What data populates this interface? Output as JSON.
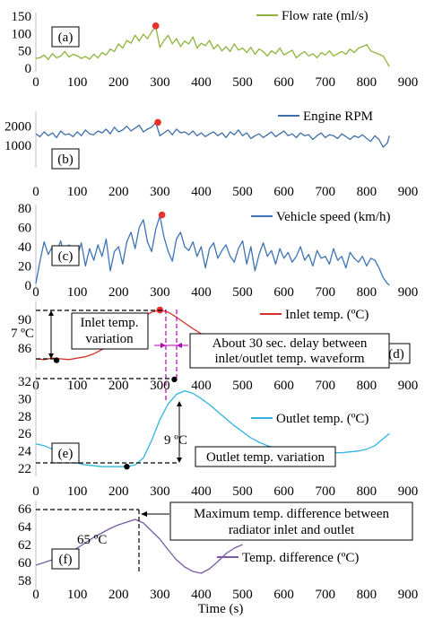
{
  "xlabel": "Time (s)",
  "colors": {
    "flow": "#8db43a",
    "rpm": "#3e6ea8",
    "speed": "#3e74b4",
    "inlet": "#d4302a",
    "outlet": "#2fb5df",
    "diff": "#7b5aa6",
    "marker_red": "#e8312a",
    "marker_black": "#000000",
    "delay_arrow": "#b000b0"
  },
  "chart_data": [
    {
      "id": "a",
      "panel_label": "(a)",
      "type": "line",
      "legend": "Flow rate (ml/s)",
      "ylim": [
        0,
        150
      ],
      "yticks": [
        "0",
        "50",
        "100",
        "150"
      ],
      "ytick_values": [
        0,
        50,
        100,
        150
      ],
      "xlim": [
        0,
        900
      ],
      "xticks": [
        "0",
        "100",
        "200",
        "300",
        "400",
        "500",
        "600",
        "700",
        "800",
        "900"
      ],
      "x": [
        0,
        10,
        20,
        30,
        40,
        50,
        60,
        70,
        80,
        90,
        100,
        110,
        120,
        130,
        140,
        150,
        160,
        170,
        180,
        190,
        200,
        210,
        220,
        230,
        240,
        250,
        260,
        270,
        280,
        290,
        300,
        310,
        320,
        330,
        340,
        350,
        360,
        370,
        380,
        390,
        400,
        410,
        420,
        430,
        440,
        450,
        460,
        470,
        480,
        490,
        500,
        510,
        520,
        530,
        540,
        550,
        560,
        570,
        580,
        590,
        600,
        610,
        620,
        630,
        640,
        650,
        660,
        670,
        680,
        690,
        700,
        710,
        720,
        730,
        740,
        750,
        760,
        770,
        780,
        790,
        800,
        810,
        820,
        830,
        840,
        850,
        855
      ],
      "y": [
        28,
        30,
        38,
        25,
        42,
        30,
        35,
        48,
        32,
        40,
        36,
        28,
        34,
        26,
        40,
        30,
        45,
        38,
        55,
        48,
        70,
        58,
        80,
        72,
        95,
        78,
        98,
        85,
        105,
        120,
        60,
        80,
        95,
        70,
        85,
        62,
        78,
        70,
        90,
        58,
        72,
        65,
        80,
        55,
        68,
        50,
        62,
        48,
        70,
        52,
        58,
        45,
        60,
        40,
        55,
        48,
        35,
        50,
        42,
        58,
        38,
        45,
        52,
        30,
        40,
        48,
        35,
        42,
        30,
        45,
        38,
        50,
        35,
        42,
        48,
        40,
        55,
        45,
        58,
        62,
        68,
        50,
        45,
        40,
        35,
        15,
        5
      ],
      "markers": [
        {
          "x": 290,
          "y": 122,
          "color": "red"
        }
      ]
    },
    {
      "id": "b",
      "panel_label": "(b)",
      "type": "line",
      "legend": "Engine RPM",
      "ylim": [
        0,
        2600
      ],
      "yticks": [
        "1000",
        "2000"
      ],
      "ytick_values": [
        1000,
        2000
      ],
      "xlim": [
        0,
        900
      ],
      "xticks": [
        "0",
        "100",
        "200",
        "300",
        "400",
        "500",
        "600",
        "700",
        "800",
        "900"
      ],
      "x": [
        0,
        10,
        20,
        30,
        40,
        50,
        60,
        70,
        80,
        90,
        100,
        110,
        120,
        130,
        140,
        150,
        160,
        170,
        180,
        190,
        200,
        210,
        220,
        230,
        240,
        250,
        260,
        270,
        280,
        290,
        300,
        310,
        320,
        330,
        340,
        350,
        360,
        370,
        380,
        390,
        400,
        410,
        420,
        430,
        440,
        450,
        460,
        470,
        480,
        490,
        500,
        510,
        520,
        530,
        540,
        550,
        560,
        570,
        580,
        590,
        600,
        610,
        620,
        630,
        640,
        650,
        660,
        670,
        680,
        690,
        700,
        710,
        720,
        730,
        740,
        750,
        760,
        770,
        780,
        790,
        800,
        810,
        820,
        830,
        840,
        850,
        855
      ],
      "y": [
        1600,
        1450,
        1700,
        1500,
        1650,
        1400,
        1750,
        1550,
        1600,
        1450,
        1700,
        1500,
        1800,
        1600,
        1550,
        1750,
        1650,
        1850,
        1600,
        1950,
        1700,
        1800,
        2000,
        1750,
        1900,
        2050,
        1700,
        1850,
        1950,
        2200,
        1500,
        1650,
        1800,
        1550,
        1850,
        1650,
        1700,
        1550,
        1750,
        1500,
        1650,
        1450,
        1600,
        1700,
        1500,
        1650,
        1400,
        1700,
        1550,
        1800,
        1500,
        1650,
        1350,
        1500,
        1600,
        1400,
        1550,
        1700,
        1450,
        1600,
        1750,
        1500,
        1600,
        1400,
        1650,
        1500,
        1550,
        1300,
        1500,
        1650,
        1400,
        1550,
        1500,
        1350,
        1600,
        1450,
        1300,
        1500,
        1400,
        1550,
        1350,
        1200,
        1500,
        1300,
        900,
        1100,
        1500
      ],
      "markers": [
        {
          "x": 295,
          "y": 2200,
          "color": "red"
        }
      ]
    },
    {
      "id": "c",
      "panel_label": "(c)",
      "type": "line",
      "legend": "Vehicle speed (km/h)",
      "ylim": [
        0,
        80
      ],
      "yticks": [
        "0",
        "20",
        "40",
        "60",
        "80"
      ],
      "ytick_values": [
        0,
        20,
        40,
        60,
        80
      ],
      "xlim": [
        0,
        900
      ],
      "xticks": [
        "0",
        "100",
        "200",
        "300",
        "400",
        "500",
        "600",
        "700",
        "800",
        "900"
      ],
      "x": [
        0,
        10,
        20,
        30,
        40,
        50,
        60,
        70,
        80,
        90,
        100,
        110,
        120,
        130,
        140,
        150,
        160,
        170,
        180,
        190,
        200,
        210,
        220,
        230,
        240,
        250,
        260,
        270,
        280,
        290,
        300,
        310,
        320,
        330,
        340,
        350,
        360,
        370,
        380,
        390,
        400,
        410,
        420,
        430,
        440,
        450,
        460,
        470,
        480,
        490,
        500,
        510,
        520,
        530,
        540,
        550,
        560,
        570,
        580,
        590,
        600,
        610,
        620,
        630,
        640,
        650,
        660,
        670,
        680,
        690,
        700,
        710,
        720,
        730,
        740,
        750,
        760,
        770,
        780,
        790,
        800,
        810,
        820,
        830,
        840,
        850,
        855
      ],
      "y": [
        2,
        25,
        45,
        32,
        40,
        35,
        46,
        28,
        42,
        36,
        30,
        44,
        20,
        38,
        26,
        42,
        30,
        48,
        15,
        35,
        40,
        22,
        45,
        55,
        38,
        60,
        68,
        45,
        35,
        58,
        72,
        50,
        35,
        25,
        48,
        55,
        40,
        36,
        45,
        30,
        40,
        18,
        38,
        44,
        28,
        36,
        42,
        30,
        24,
        38,
        46,
        22,
        40,
        15,
        32,
        44,
        30,
        36,
        22,
        38,
        28,
        34,
        24,
        30,
        40,
        26,
        32,
        20,
        36,
        28,
        30,
        22,
        38,
        26,
        30,
        18,
        34,
        28,
        24,
        30,
        20,
        28,
        26,
        18,
        8,
        2,
        0
      ],
      "markers": [
        {
          "x": 305,
          "y": 73,
          "color": "red"
        }
      ]
    },
    {
      "id": "d",
      "panel_label": "(d)",
      "type": "line",
      "legend": "Inlet temp. (ºC)",
      "ylim": [
        83.5,
        92
      ],
      "yticks": [
        "86",
        "90"
      ],
      "ytick_values": [
        86,
        90
      ],
      "xlim": [
        0,
        900
      ],
      "xticks": [
        "0",
        "100",
        "200",
        "300",
        "400",
        "500",
        "600",
        "700",
        "800",
        "900"
      ],
      "x": [
        0,
        20,
        40,
        60,
        80,
        100,
        120,
        140,
        160,
        180,
        200,
        220,
        240,
        260,
        280,
        300,
        320,
        340,
        360,
        380,
        400,
        420,
        440,
        460,
        480,
        500,
        520,
        540,
        560,
        580,
        600,
        620,
        640,
        660,
        680,
        700,
        720,
        740,
        760,
        780,
        800,
        820,
        840,
        855
      ],
      "y": [
        84.5,
        84.4,
        84.6,
        84.5,
        84.4,
        84.6,
        84.8,
        85.2,
        85.8,
        86.6,
        87.6,
        88.6,
        89.6,
        90.4,
        91.0,
        91.3,
        91.0,
        90.3,
        89.5,
        88.7,
        88.0,
        87.6,
        87.3,
        87.2,
        87.3,
        87.4,
        87.4,
        87.5,
        87.6,
        87.5,
        87.4,
        87.4,
        87.5,
        87.4,
        87.3,
        87.4,
        87.5,
        87.6,
        87.5,
        87.6,
        87.5,
        87.6,
        87.6,
        87.7
      ],
      "markers": [
        {
          "x": 300,
          "y": 91.3,
          "color": "red"
        },
        {
          "x": 50,
          "y": 84.3,
          "color": "black"
        }
      ]
    },
    {
      "id": "e",
      "panel_label": "(e)",
      "type": "line",
      "legend": "Outlet temp. (ºC)",
      "ylim": [
        21.5,
        32.5
      ],
      "yticks": [
        "22",
        "24",
        "26",
        "28",
        "30",
        "32"
      ],
      "ytick_values": [
        22,
        24,
        26,
        28,
        30,
        32
      ],
      "xlim": [
        0,
        900
      ],
      "xticks": [
        "0",
        "100",
        "200",
        "300",
        "400",
        "500",
        "600",
        "700",
        "800",
        "900"
      ],
      "x": [
        0,
        20,
        40,
        60,
        80,
        100,
        120,
        140,
        160,
        180,
        200,
        220,
        240,
        260,
        280,
        300,
        320,
        340,
        360,
        380,
        400,
        420,
        440,
        460,
        480,
        500,
        520,
        540,
        560,
        580,
        600,
        620,
        640,
        660,
        680,
        700,
        720,
        740,
        760,
        780,
        800,
        820,
        840,
        855
      ],
      "y": [
        24.8,
        24.6,
        24.2,
        23.6,
        23.0,
        22.6,
        22.4,
        22.3,
        22.2,
        22.2,
        22.2,
        22.2,
        22.4,
        23.2,
        25.2,
        27.6,
        29.4,
        30.5,
        30.9,
        30.6,
        30.0,
        29.3,
        28.5,
        27.7,
        26.9,
        26.2,
        25.5,
        25.0,
        24.6,
        24.3,
        24.1,
        24.0,
        23.9,
        23.8,
        23.8,
        23.7,
        23.8,
        23.8,
        23.9,
        24.0,
        24.2,
        24.6,
        25.4,
        26.0
      ],
      "markers": [
        {
          "x": 335,
          "y": 32.2,
          "color": "black"
        },
        {
          "x": 220,
          "y": 22.2,
          "color": "black"
        }
      ]
    },
    {
      "id": "f",
      "panel_label": "(f)",
      "type": "line",
      "legend": "Temp. difference (ºC)",
      "ylim": [
        57.5,
        66.5
      ],
      "yticks": [
        "58",
        "60",
        "62",
        "64",
        "66"
      ],
      "ytick_values": [
        58,
        60,
        62,
        64,
        66
      ],
      "xlim": [
        0,
        900
      ],
      "xticks": [
        "0",
        "100",
        "200",
        "300",
        "400",
        "500",
        "600",
        "700",
        "800",
        "900"
      ],
      "x": [
        0,
        20,
        40,
        60,
        80,
        100,
        120,
        140,
        160,
        180,
        200,
        220,
        240,
        260,
        280,
        300,
        320,
        340,
        360,
        380,
        400,
        420,
        440,
        460,
        480,
        500
      ],
      "y": [
        59.7,
        60.0,
        60.3,
        60.6,
        61.0,
        61.6,
        62.2,
        62.8,
        63.3,
        63.8,
        64.2,
        64.5,
        64.8,
        64.4,
        63.5,
        62.6,
        61.4,
        60.3,
        59.5,
        59.0,
        58.8,
        59.3,
        60.1,
        61.0,
        61.6,
        62.0
      ],
      "markers": []
    }
  ],
  "annotations": {
    "d_variation_label_1": "Inlet temp.",
    "d_variation_label_2": "variation",
    "d_delta": "7 ºC",
    "d_delay": "About 30 sec. delay between",
    "d_delay_2": "inlet/outlet temp. waveform",
    "e_delta": "9 ºC",
    "e_variation": "Outlet temp. variation",
    "f_max_1": "Maximum temp. difference between",
    "f_max_2": "radiator inlet and outlet",
    "f_value": "65 ºC"
  }
}
